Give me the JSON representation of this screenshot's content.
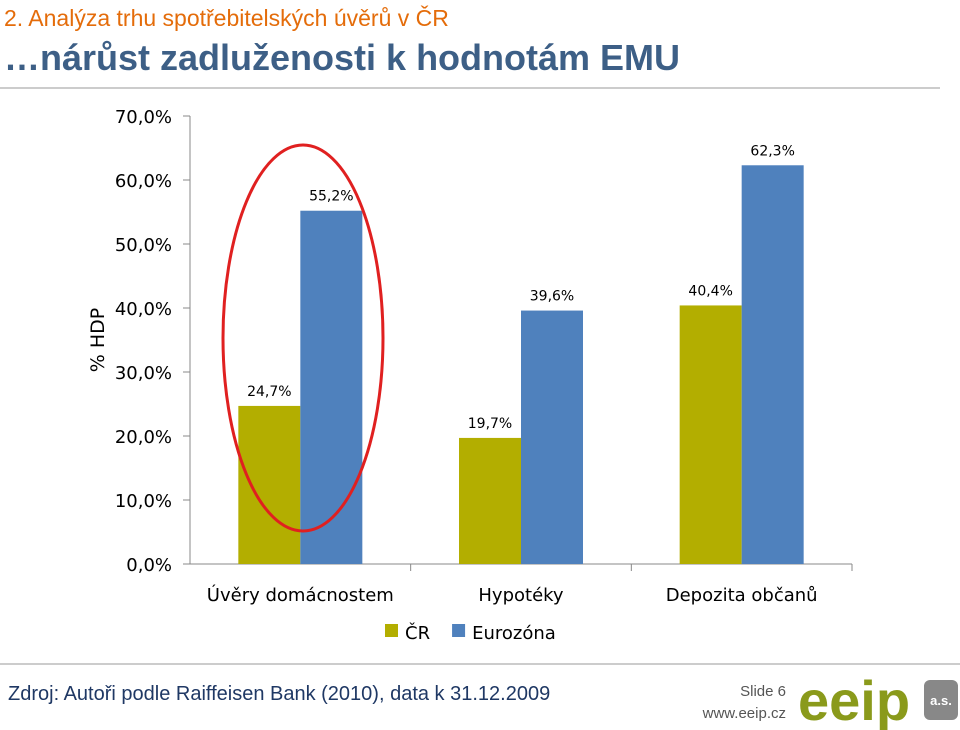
{
  "slide": {
    "title": "2. Analýza trhu spotřebitelských úvěrů v ČR",
    "subtitle": "…nárůst zadluženosti k hodnotám EMU",
    "source": "Zdroj: Autoři podle Raiffeisen Bank (2010), data k 31.12.2009",
    "slide_number": "Slide 6",
    "url": "www.eeip.cz",
    "logo": "eeip",
    "logo_suffix": "a.s."
  },
  "chart_data": {
    "type": "bar",
    "y_label": "% HDP",
    "categories": [
      "Úvěry domácnostem",
      "Hypotéky",
      "Depozita občanů"
    ],
    "series": [
      {
        "name": "ČR",
        "color": "#b3ae00",
        "values": [
          24.7,
          19.7,
          40.4
        ],
        "value_labels": [
          "24,7%",
          "19,7%",
          "40,4%"
        ]
      },
      {
        "name": "Eurozóna",
        "color": "#4f81bd",
        "values": [
          55.2,
          39.6,
          62.3
        ],
        "value_labels": [
          "55,2%",
          "39,6%",
          "62,3%"
        ]
      }
    ],
    "ylim": [
      0,
      70
    ],
    "yticks": [
      {
        "value": 0,
        "label": "0,0%"
      },
      {
        "value": 10,
        "label": "10,0%"
      },
      {
        "value": 20,
        "label": "20,0%"
      },
      {
        "value": 30,
        "label": "30,0%"
      },
      {
        "value": 40,
        "label": "40,0%"
      },
      {
        "value": 50,
        "label": "50,0%"
      },
      {
        "value": 60,
        "label": "60,0%"
      },
      {
        "value": 70,
        "label": "70,0%"
      }
    ],
    "grid": false,
    "legend": "bottom"
  }
}
